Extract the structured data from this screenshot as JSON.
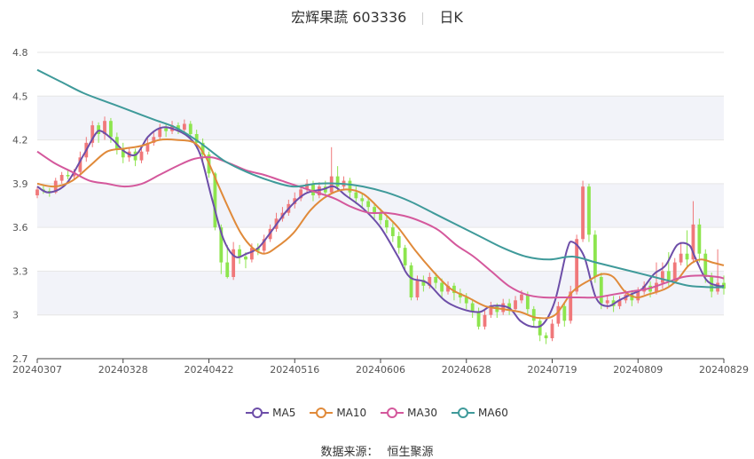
{
  "header": {
    "title": "宏辉果蔬 603336",
    "period": "日K"
  },
  "source": {
    "label": "数据来源：",
    "value": "恒生聚源"
  },
  "colors": {
    "up": "#f0787a",
    "down": "#8de54e",
    "MA5": "#6d4ea8",
    "MA10": "#e08a3a",
    "MA30": "#d4589c",
    "MA60": "#3f9a9a",
    "band": "#f2f3f9",
    "grid": "#e6e6e6"
  },
  "chart_data": {
    "type": "candlestick",
    "ylim": [
      2.7,
      4.8
    ],
    "yticks": [
      "2.7",
      "3",
      "3.3",
      "3.6",
      "3.9",
      "4.2",
      "4.5",
      "4.8"
    ],
    "yticks_values": [
      2.7,
      3.0,
      3.3,
      3.6,
      3.9,
      4.2,
      4.5,
      4.8
    ],
    "xticks": [
      "20240307",
      "20240328",
      "20240422",
      "20240516",
      "20240606",
      "20240628",
      "20240719",
      "20240809",
      "20240829"
    ],
    "xticks_index": [
      0,
      14,
      28,
      42,
      56,
      70,
      84,
      98,
      112
    ],
    "num_days": 113,
    "candles": [
      [
        3.82,
        3.86,
        3.88,
        3.8
      ],
      [
        3.86,
        3.85,
        3.89,
        3.83
      ],
      [
        3.85,
        3.84,
        3.87,
        3.81
      ],
      [
        3.84,
        3.92,
        3.94,
        3.83
      ],
      [
        3.92,
        3.96,
        3.98,
        3.9
      ],
      [
        3.96,
        3.95,
        3.99,
        3.93
      ],
      [
        3.95,
        3.98,
        4.0,
        3.93
      ],
      [
        3.98,
        4.08,
        4.12,
        3.96
      ],
      [
        4.08,
        4.18,
        4.22,
        4.05
      ],
      [
        4.18,
        4.3,
        4.33,
        4.15
      ],
      [
        4.3,
        4.24,
        4.32,
        4.18
      ],
      [
        4.24,
        4.33,
        4.36,
        4.2
      ],
      [
        4.33,
        4.22,
        4.35,
        4.18
      ],
      [
        4.22,
        4.14,
        4.25,
        4.1
      ],
      [
        4.14,
        4.08,
        4.18,
        4.04
      ],
      [
        4.08,
        4.12,
        4.15,
        4.05
      ],
      [
        4.12,
        4.06,
        4.14,
        4.02
      ],
      [
        4.06,
        4.12,
        4.15,
        4.04
      ],
      [
        4.12,
        4.18,
        4.21,
        4.1
      ],
      [
        4.18,
        4.22,
        4.25,
        4.16
      ],
      [
        4.22,
        4.28,
        4.31,
        4.2
      ],
      [
        4.28,
        4.26,
        4.31,
        4.22
      ],
      [
        4.26,
        4.3,
        4.33,
        4.24
      ],
      [
        4.3,
        4.27,
        4.32,
        4.24
      ],
      [
        4.27,
        4.31,
        4.34,
        4.25
      ],
      [
        4.31,
        4.24,
        4.33,
        4.2
      ],
      [
        4.24,
        4.18,
        4.27,
        4.14
      ],
      [
        4.18,
        4.1,
        4.21,
        4.05
      ],
      [
        4.1,
        3.97,
        4.12,
        3.94
      ],
      [
        3.97,
        3.6,
        3.98,
        3.58
      ],
      [
        3.6,
        3.36,
        3.62,
        3.28
      ],
      [
        3.36,
        3.26,
        3.48,
        3.25
      ],
      [
        3.26,
        3.45,
        3.5,
        3.24
      ],
      [
        3.45,
        3.4,
        3.48,
        3.35
      ],
      [
        3.4,
        3.38,
        3.43,
        3.32
      ],
      [
        3.38,
        3.46,
        3.49,
        3.36
      ],
      [
        3.46,
        3.44,
        3.49,
        3.41
      ],
      [
        3.44,
        3.52,
        3.55,
        3.42
      ],
      [
        3.52,
        3.59,
        3.62,
        3.5
      ],
      [
        3.59,
        3.66,
        3.7,
        3.57
      ],
      [
        3.66,
        3.7,
        3.74,
        3.64
      ],
      [
        3.7,
        3.76,
        3.79,
        3.68
      ],
      [
        3.76,
        3.8,
        3.84,
        3.73
      ],
      [
        3.8,
        3.86,
        3.89,
        3.78
      ],
      [
        3.86,
        3.9,
        3.93,
        3.84
      ],
      [
        3.9,
        3.82,
        3.92,
        3.78
      ],
      [
        3.82,
        3.88,
        3.91,
        3.8
      ],
      [
        3.88,
        3.84,
        3.92,
        3.82
      ],
      [
        3.84,
        3.95,
        4.15,
        3.83
      ],
      [
        3.95,
        3.88,
        4.02,
        3.85
      ],
      [
        3.88,
        3.92,
        3.95,
        3.86
      ],
      [
        3.92,
        3.84,
        3.94,
        3.8
      ],
      [
        3.84,
        3.8,
        3.88,
        3.76
      ],
      [
        3.8,
        3.78,
        3.83,
        3.74
      ],
      [
        3.78,
        3.74,
        3.81,
        3.7
      ],
      [
        3.74,
        3.7,
        3.77,
        3.66
      ],
      [
        3.7,
        3.65,
        3.73,
        3.62
      ],
      [
        3.65,
        3.6,
        3.68,
        3.56
      ],
      [
        3.6,
        3.54,
        3.63,
        3.5
      ],
      [
        3.54,
        3.46,
        3.57,
        3.42
      ],
      [
        3.46,
        3.34,
        3.48,
        3.3
      ],
      [
        3.34,
        3.12,
        3.36,
        3.1
      ],
      [
        3.12,
        3.24,
        3.27,
        3.1
      ],
      [
        3.24,
        3.2,
        3.27,
        3.16
      ],
      [
        3.2,
        3.26,
        3.29,
        3.18
      ],
      [
        3.26,
        3.22,
        3.29,
        3.18
      ],
      [
        3.22,
        3.16,
        3.25,
        3.12
      ],
      [
        3.16,
        3.2,
        3.23,
        3.14
      ],
      [
        3.2,
        3.15,
        3.22,
        3.1
      ],
      [
        3.15,
        3.12,
        3.18,
        3.08
      ],
      [
        3.12,
        3.08,
        3.15,
        3.04
      ],
      [
        3.08,
        3.02,
        3.11,
        2.98
      ],
      [
        3.02,
        2.92,
        3.05,
        2.9
      ],
      [
        2.92,
        3.0,
        3.03,
        2.9
      ],
      [
        3.0,
        3.06,
        3.09,
        2.98
      ],
      [
        3.06,
        3.02,
        3.08,
        2.98
      ],
      [
        3.02,
        3.08,
        3.11,
        3.0
      ],
      [
        3.08,
        3.04,
        3.11,
        3.0
      ],
      [
        3.04,
        3.1,
        3.13,
        3.02
      ],
      [
        3.1,
        3.14,
        3.17,
        3.08
      ],
      [
        3.14,
        3.04,
        3.16,
        3.0
      ],
      [
        3.04,
        2.96,
        3.06,
        2.92
      ],
      [
        2.96,
        2.86,
        2.98,
        2.82
      ],
      [
        2.86,
        2.84,
        2.88,
        2.8
      ],
      [
        2.84,
        2.94,
        2.97,
        2.82
      ],
      [
        2.94,
        3.06,
        3.09,
        2.92
      ],
      [
        3.06,
        2.96,
        3.08,
        2.92
      ],
      [
        2.96,
        3.16,
        3.2,
        2.94
      ],
      [
        3.16,
        3.52,
        3.55,
        3.14
      ],
      [
        3.52,
        3.88,
        3.92,
        3.5
      ],
      [
        3.88,
        3.55,
        3.9,
        3.5
      ],
      [
        3.55,
        3.26,
        3.58,
        3.22
      ],
      [
        3.26,
        3.08,
        3.29,
        3.04
      ],
      [
        3.08,
        3.1,
        3.13,
        3.04
      ],
      [
        3.1,
        3.06,
        3.13,
        3.02
      ],
      [
        3.06,
        3.1,
        3.13,
        3.04
      ],
      [
        3.1,
        3.14,
        3.17,
        3.08
      ],
      [
        3.14,
        3.1,
        3.17,
        3.06
      ],
      [
        3.1,
        3.16,
        3.19,
        3.08
      ],
      [
        3.16,
        3.2,
        3.23,
        3.14
      ],
      [
        3.2,
        3.16,
        3.23,
        3.12
      ],
      [
        3.16,
        3.22,
        3.36,
        3.14
      ],
      [
        3.22,
        3.3,
        3.36,
        3.18
      ],
      [
        3.3,
        3.24,
        3.43,
        3.2
      ],
      [
        3.24,
        3.36,
        3.39,
        3.22
      ],
      [
        3.36,
        3.42,
        3.5,
        3.34
      ],
      [
        3.42,
        3.38,
        3.58,
        3.32
      ],
      [
        3.38,
        3.62,
        3.78,
        3.36
      ],
      [
        3.62,
        3.42,
        3.66,
        3.36
      ],
      [
        3.42,
        3.26,
        3.45,
        3.22
      ],
      [
        3.26,
        3.16,
        3.29,
        3.12
      ],
      [
        3.16,
        3.22,
        3.45,
        3.14
      ],
      [
        3.22,
        3.18,
        3.27,
        3.14
      ]
    ],
    "series": [
      {
        "name": "MA5",
        "anchors": [
          [
            0,
            3.88
          ],
          [
            2,
            3.84
          ],
          [
            5,
            3.9
          ],
          [
            8,
            4.1
          ],
          [
            10,
            4.24
          ],
          [
            11,
            4.26
          ],
          [
            13,
            4.2
          ],
          [
            15,
            4.12
          ],
          [
            17,
            4.1
          ],
          [
            19,
            4.22
          ],
          [
            21,
            4.28
          ],
          [
            23,
            4.28
          ],
          [
            26,
            4.22
          ],
          [
            28,
            4.1
          ],
          [
            30,
            3.8
          ],
          [
            32,
            3.52
          ],
          [
            34,
            3.4
          ],
          [
            36,
            3.42
          ],
          [
            38,
            3.46
          ],
          [
            40,
            3.56
          ],
          [
            43,
            3.72
          ],
          [
            46,
            3.83
          ],
          [
            49,
            3.86
          ],
          [
            51,
            3.88
          ],
          [
            53,
            3.82
          ],
          [
            56,
            3.73
          ],
          [
            59,
            3.6
          ],
          [
            62,
            3.4
          ],
          [
            64,
            3.26
          ],
          [
            67,
            3.22
          ],
          [
            70,
            3.1
          ],
          [
            73,
            3.04
          ],
          [
            76,
            3.02
          ],
          [
            78,
            3.06
          ],
          [
            81,
            3.05
          ],
          [
            83,
            2.96
          ],
          [
            85,
            2.92
          ],
          [
            87,
            2.94
          ],
          [
            89,
            3.1
          ],
          [
            91,
            3.44
          ],
          [
            92,
            3.5
          ],
          [
            94,
            3.4
          ],
          [
            96,
            3.12
          ],
          [
            98,
            3.06
          ],
          [
            100,
            3.1
          ],
          [
            102,
            3.14
          ],
          [
            104,
            3.18
          ],
          [
            106,
            3.28
          ],
          [
            108,
            3.34
          ],
          [
            110,
            3.48
          ],
          [
            112,
            3.48
          ],
          [
            113,
            3.4
          ],
          [
            115,
            3.24
          ],
          [
            117,
            3.2
          ],
          [
            118,
            3.2
          ]
        ]
      },
      {
        "name": "MA10",
        "anchors": [
          [
            0,
            3.9
          ],
          [
            3,
            3.88
          ],
          [
            6,
            3.92
          ],
          [
            9,
            4.02
          ],
          [
            12,
            4.12
          ],
          [
            15,
            4.14
          ],
          [
            18,
            4.16
          ],
          [
            21,
            4.2
          ],
          [
            24,
            4.2
          ],
          [
            27,
            4.18
          ],
          [
            29,
            4.08
          ],
          [
            31,
            3.9
          ],
          [
            33,
            3.72
          ],
          [
            35,
            3.56
          ],
          [
            37,
            3.46
          ],
          [
            39,
            3.42
          ],
          [
            41,
            3.46
          ],
          [
            44,
            3.56
          ],
          [
            47,
            3.72
          ],
          [
            50,
            3.82
          ],
          [
            53,
            3.86
          ],
          [
            56,
            3.83
          ],
          [
            59,
            3.72
          ],
          [
            62,
            3.6
          ],
          [
            65,
            3.44
          ],
          [
            68,
            3.3
          ],
          [
            71,
            3.18
          ],
          [
            74,
            3.12
          ],
          [
            77,
            3.06
          ],
          [
            80,
            3.04
          ],
          [
            83,
            3.02
          ],
          [
            86,
            2.98
          ],
          [
            89,
            3.0
          ],
          [
            92,
            3.16
          ],
          [
            95,
            3.24
          ],
          [
            97,
            3.28
          ],
          [
            99,
            3.26
          ],
          [
            101,
            3.16
          ],
          [
            103,
            3.12
          ],
          [
            105,
            3.14
          ],
          [
            108,
            3.18
          ],
          [
            110,
            3.24
          ],
          [
            112,
            3.34
          ],
          [
            114,
            3.38
          ],
          [
            116,
            3.36
          ],
          [
            118,
            3.34
          ]
        ]
      },
      {
        "name": "MA30",
        "anchors": [
          [
            0,
            4.12
          ],
          [
            3,
            4.04
          ],
          [
            6,
            3.98
          ],
          [
            9,
            3.92
          ],
          [
            12,
            3.9
          ],
          [
            15,
            3.88
          ],
          [
            18,
            3.9
          ],
          [
            21,
            3.96
          ],
          [
            24,
            4.02
          ],
          [
            27,
            4.07
          ],
          [
            30,
            4.08
          ],
          [
            33,
            4.04
          ],
          [
            36,
            3.99
          ],
          [
            39,
            3.96
          ],
          [
            42,
            3.92
          ],
          [
            45,
            3.88
          ],
          [
            48,
            3.84
          ],
          [
            51,
            3.8
          ],
          [
            54,
            3.74
          ],
          [
            57,
            3.7
          ],
          [
            60,
            3.7
          ],
          [
            63,
            3.68
          ],
          [
            66,
            3.64
          ],
          [
            69,
            3.58
          ],
          [
            72,
            3.48
          ],
          [
            75,
            3.4
          ],
          [
            78,
            3.3
          ],
          [
            81,
            3.2
          ],
          [
            84,
            3.14
          ],
          [
            87,
            3.12
          ],
          [
            90,
            3.12
          ],
          [
            93,
            3.12
          ],
          [
            96,
            3.12
          ],
          [
            99,
            3.14
          ],
          [
            102,
            3.16
          ],
          [
            105,
            3.18
          ],
          [
            108,
            3.22
          ],
          [
            111,
            3.26
          ],
          [
            114,
            3.27
          ],
          [
            117,
            3.26
          ],
          [
            118,
            3.25
          ]
        ]
      },
      {
        "name": "MA60",
        "anchors": [
          [
            0,
            4.68
          ],
          [
            4,
            4.6
          ],
          [
            8,
            4.52
          ],
          [
            12,
            4.46
          ],
          [
            16,
            4.4
          ],
          [
            20,
            4.34
          ],
          [
            24,
            4.28
          ],
          [
            28,
            4.18
          ],
          [
            32,
            4.06
          ],
          [
            36,
            3.98
          ],
          [
            40,
            3.92
          ],
          [
            44,
            3.88
          ],
          [
            48,
            3.9
          ],
          [
            52,
            3.9
          ],
          [
            56,
            3.88
          ],
          [
            60,
            3.84
          ],
          [
            64,
            3.78
          ],
          [
            68,
            3.7
          ],
          [
            72,
            3.62
          ],
          [
            76,
            3.54
          ],
          [
            80,
            3.46
          ],
          [
            84,
            3.4
          ],
          [
            88,
            3.38
          ],
          [
            92,
            3.4
          ],
          [
            96,
            3.36
          ],
          [
            100,
            3.32
          ],
          [
            104,
            3.28
          ],
          [
            108,
            3.24
          ],
          [
            112,
            3.2
          ],
          [
            116,
            3.19
          ],
          [
            118,
            3.19
          ]
        ]
      }
    ],
    "legend": [
      "MA5",
      "MA10",
      "MA30",
      "MA60"
    ],
    "legend_position": "bottom-center",
    "banded_background": true
  }
}
